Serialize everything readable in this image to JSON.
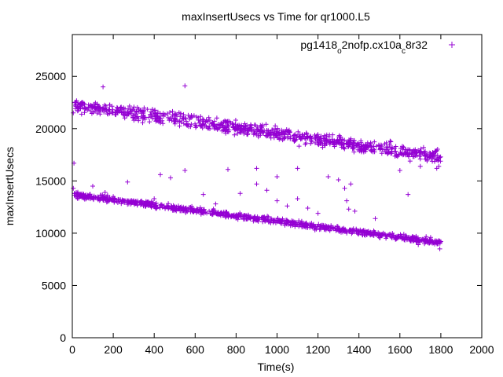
{
  "chart_data": {
    "type": "scatter",
    "title": "maxInsertUsecs vs Time for qr1000.L5",
    "xlabel": "Time(s)",
    "ylabel": "maxInsertUsecs",
    "xlim": [
      0,
      2000
    ],
    "ylim": [
      0,
      29000
    ],
    "x_ticks": [
      0,
      200,
      400,
      600,
      800,
      1000,
      1200,
      1400,
      1600,
      1800,
      2000
    ],
    "y_ticks": [
      0,
      5000,
      10000,
      15000,
      20000,
      25000
    ],
    "grid": false,
    "legend_position": "top-right",
    "marker": "+",
    "series": [
      {
        "name": "pg1418_o2nofp.cx10a_c8r32",
        "color": "#9400d3",
        "bands": [
          {
            "description": "upper band",
            "x_range": [
              10,
              1800
            ],
            "y_start": 22300,
            "y_end": 17300,
            "spread": 1000
          },
          {
            "description": "lower band",
            "x_range": [
              0,
              1800
            ],
            "y_start": 13700,
            "y_end": 9100,
            "spread": 450
          }
        ],
        "points": [
          [
            5,
            21500
          ],
          [
            8,
            16700
          ],
          [
            5,
            14300
          ],
          [
            10,
            13800
          ],
          [
            150,
            24000
          ],
          [
            550,
            24100
          ],
          [
            430,
            15600
          ],
          [
            480,
            15300
          ],
          [
            550,
            16000
          ],
          [
            270,
            14900
          ],
          [
            760,
            16100
          ],
          [
            900,
            16200
          ],
          [
            640,
            13700
          ],
          [
            820,
            13800
          ],
          [
            1000,
            15400
          ],
          [
            1100,
            16200
          ],
          [
            1250,
            15400
          ],
          [
            1300,
            15100
          ],
          [
            1330,
            14300
          ],
          [
            1340,
            13100
          ],
          [
            1350,
            12300
          ],
          [
            1360,
            14700
          ],
          [
            1380,
            12100
          ],
          [
            1100,
            13300
          ],
          [
            1200,
            11900
          ],
          [
            1150,
            12400
          ],
          [
            1480,
            11400
          ],
          [
            1640,
            13700
          ],
          [
            1700,
            16400
          ],
          [
            1780,
            16200
          ],
          [
            1600,
            16000
          ],
          [
            1790,
            16400
          ],
          [
            1795,
            8500
          ],
          [
            1800,
            9200
          ],
          [
            1780,
            17900
          ],
          [
            1760,
            17500
          ],
          [
            1700,
            17100
          ],
          [
            1650,
            16900
          ],
          [
            1720,
            9000
          ],
          [
            1750,
            9600
          ],
          [
            1690,
            8900
          ],
          [
            1000,
            13100
          ],
          [
            950,
            14100
          ],
          [
            900,
            14700
          ],
          [
            400,
            13300
          ],
          [
            300,
            13100
          ],
          [
            700,
            12800
          ],
          [
            1050,
            12600
          ],
          [
            100,
            14500
          ],
          [
            200,
            13500
          ],
          [
            160,
            13900
          ]
        ]
      }
    ]
  }
}
